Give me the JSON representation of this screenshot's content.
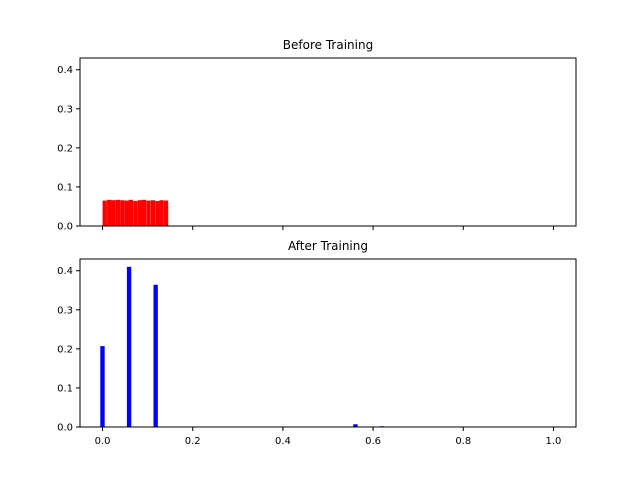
{
  "chart_data": [
    {
      "type": "bar",
      "title": "Before Training",
      "color": "#ff0000",
      "ylim": [
        0,
        0.43
      ],
      "xlim": [
        -0.05,
        1.05
      ],
      "yticks": [
        "0.0",
        "0.1",
        "0.2",
        "0.3",
        "0.4"
      ],
      "x_tick_labels_visible": false,
      "bin_width": 0.0097,
      "bins": [
        {
          "x": 0.0,
          "y": 0.065
        },
        {
          "x": 0.01,
          "y": 0.067
        },
        {
          "x": 0.019,
          "y": 0.066
        },
        {
          "x": 0.029,
          "y": 0.067
        },
        {
          "x": 0.039,
          "y": 0.066
        },
        {
          "x": 0.049,
          "y": 0.065
        },
        {
          "x": 0.058,
          "y": 0.067
        },
        {
          "x": 0.068,
          "y": 0.064
        },
        {
          "x": 0.078,
          "y": 0.066
        },
        {
          "x": 0.087,
          "y": 0.067
        },
        {
          "x": 0.097,
          "y": 0.065
        },
        {
          "x": 0.107,
          "y": 0.066
        },
        {
          "x": 0.117,
          "y": 0.064
        },
        {
          "x": 0.126,
          "y": 0.066
        },
        {
          "x": 0.136,
          "y": 0.065
        }
      ]
    },
    {
      "type": "bar",
      "title": "After Training",
      "color": "#0000ff",
      "ylim": [
        0,
        0.43
      ],
      "xlim": [
        -0.05,
        1.05
      ],
      "yticks": [
        "0.0",
        "0.1",
        "0.2",
        "0.3",
        "0.4"
      ],
      "xticks": [
        "0.0",
        "0.2",
        "0.4",
        "0.6",
        "0.8",
        "1.0"
      ],
      "bin_width": 0.0097,
      "bins": [
        {
          "x": -0.005,
          "y": 0.207
        },
        {
          "x": 0.054,
          "y": 0.41
        },
        {
          "x": 0.113,
          "y": 0.364
        },
        {
          "x": 0.556,
          "y": 0.007
        },
        {
          "x": 0.615,
          "y": 0.002
        }
      ]
    }
  ]
}
